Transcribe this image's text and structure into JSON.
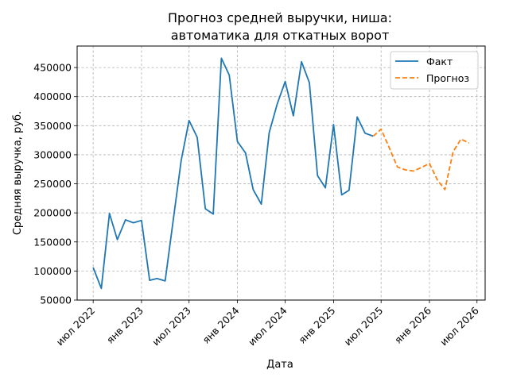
{
  "chart_data": {
    "type": "line",
    "title_lines": [
      "Прогноз средней выручки, ниша:",
      "автоматика для откатных ворот"
    ],
    "xlabel": "Дата",
    "ylabel": "Средняя выручка, руб.",
    "xlim": [
      "2022-05-01",
      "2026-08-01"
    ],
    "ylim": [
      50000,
      487000
    ],
    "x_ticks": [
      {
        "date": "2022-07-01",
        "label": "июл 2022"
      },
      {
        "date": "2023-01-01",
        "label": "янв 2023"
      },
      {
        "date": "2023-07-01",
        "label": "июл 2023"
      },
      {
        "date": "2024-01-01",
        "label": "янв 2024"
      },
      {
        "date": "2024-07-01",
        "label": "июл 2024"
      },
      {
        "date": "2025-01-01",
        "label": "янв 2025"
      },
      {
        "date": "2025-07-01",
        "label": "июл 2025"
      },
      {
        "date": "2026-01-01",
        "label": "янв 2026"
      },
      {
        "date": "2026-07-01",
        "label": "июл 2026"
      }
    ],
    "y_ticks": [
      {
        "value": 50000,
        "label": "50000"
      },
      {
        "value": 100000,
        "label": "100000"
      },
      {
        "value": 150000,
        "label": "150000"
      },
      {
        "value": 200000,
        "label": "200000"
      },
      {
        "value": 250000,
        "label": "250000"
      },
      {
        "value": 300000,
        "label": "300000"
      },
      {
        "value": 350000,
        "label": "350000"
      },
      {
        "value": 400000,
        "label": "400000"
      },
      {
        "value": 450000,
        "label": "450000"
      }
    ],
    "grid": true,
    "legend_position": "top-right",
    "series": [
      {
        "name": "Факт",
        "color": "#1f77b4",
        "style": "solid",
        "points": [
          [
            "2022-07-01",
            106000
          ],
          [
            "2022-08-01",
            70000
          ],
          [
            "2022-09-01",
            199000
          ],
          [
            "2022-10-01",
            154000
          ],
          [
            "2022-11-01",
            188000
          ],
          [
            "2022-12-01",
            183000
          ],
          [
            "2023-01-01",
            187000
          ],
          [
            "2023-02-01",
            84000
          ],
          [
            "2023-03-01",
            87000
          ],
          [
            "2023-04-01",
            83000
          ],
          [
            "2023-05-01",
            185000
          ],
          [
            "2023-06-01",
            290000
          ],
          [
            "2023-07-01",
            359000
          ],
          [
            "2023-08-01",
            330000
          ],
          [
            "2023-09-01",
            207000
          ],
          [
            "2023-10-01",
            198000
          ],
          [
            "2023-11-01",
            466000
          ],
          [
            "2023-12-01",
            437000
          ],
          [
            "2024-01-01",
            323000
          ],
          [
            "2024-02-01",
            303000
          ],
          [
            "2024-03-01",
            240000
          ],
          [
            "2024-04-01",
            215000
          ],
          [
            "2024-05-01",
            338000
          ],
          [
            "2024-06-01",
            388000
          ],
          [
            "2024-07-01",
            426000
          ],
          [
            "2024-08-01",
            367000
          ],
          [
            "2024-09-01",
            460000
          ],
          [
            "2024-10-01",
            424000
          ],
          [
            "2024-11-01",
            264000
          ],
          [
            "2024-12-01",
            243000
          ],
          [
            "2025-01-01",
            352000
          ],
          [
            "2025-02-01",
            231000
          ],
          [
            "2025-03-01",
            239000
          ],
          [
            "2025-04-01",
            365000
          ],
          [
            "2025-05-01",
            337000
          ],
          [
            "2025-06-01",
            332000
          ]
        ]
      },
      {
        "name": "Прогноз",
        "color": "#ff7f0e",
        "style": "dashed",
        "points": [
          [
            "2025-06-01",
            332000
          ],
          [
            "2025-07-01",
            344000
          ],
          [
            "2025-08-01",
            312000
          ],
          [
            "2025-09-01",
            279000
          ],
          [
            "2025-10-01",
            274000
          ],
          [
            "2025-11-01",
            272000
          ],
          [
            "2025-12-01",
            278000
          ],
          [
            "2026-01-01",
            285000
          ],
          [
            "2026-02-01",
            256000
          ],
          [
            "2026-03-01",
            240000
          ],
          [
            "2026-04-01",
            305000
          ],
          [
            "2026-05-01",
            327000
          ],
          [
            "2026-06-01",
            320000
          ]
        ]
      }
    ]
  }
}
